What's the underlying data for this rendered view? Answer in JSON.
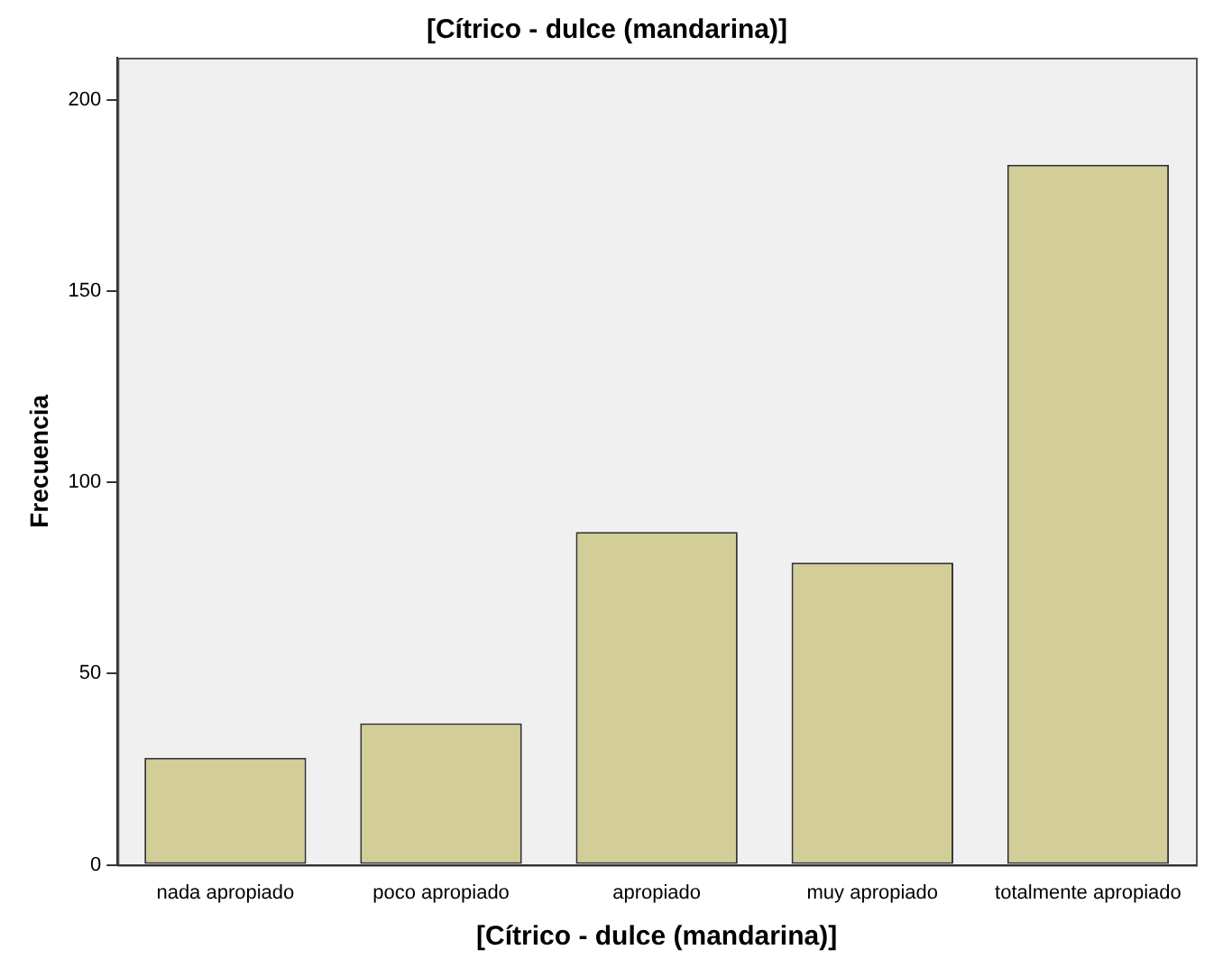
{
  "chart_data": {
    "type": "bar",
    "title": "[Cítrico - dulce (mandarina)]",
    "xlabel": "[Cítrico - dulce (mandarina)]",
    "ylabel": "Frecuencia",
    "categories": [
      "nada apropiado",
      "poco apropiado",
      "apropiado",
      "muy apropiado",
      "totalmente apropiado"
    ],
    "values": [
      28,
      37,
      87,
      79,
      183
    ],
    "color": "#d3ce97",
    "ylim": [
      0,
      211
    ],
    "yticks": [
      0,
      50,
      100,
      150,
      200
    ],
    "grid": false,
    "legend": false
  }
}
